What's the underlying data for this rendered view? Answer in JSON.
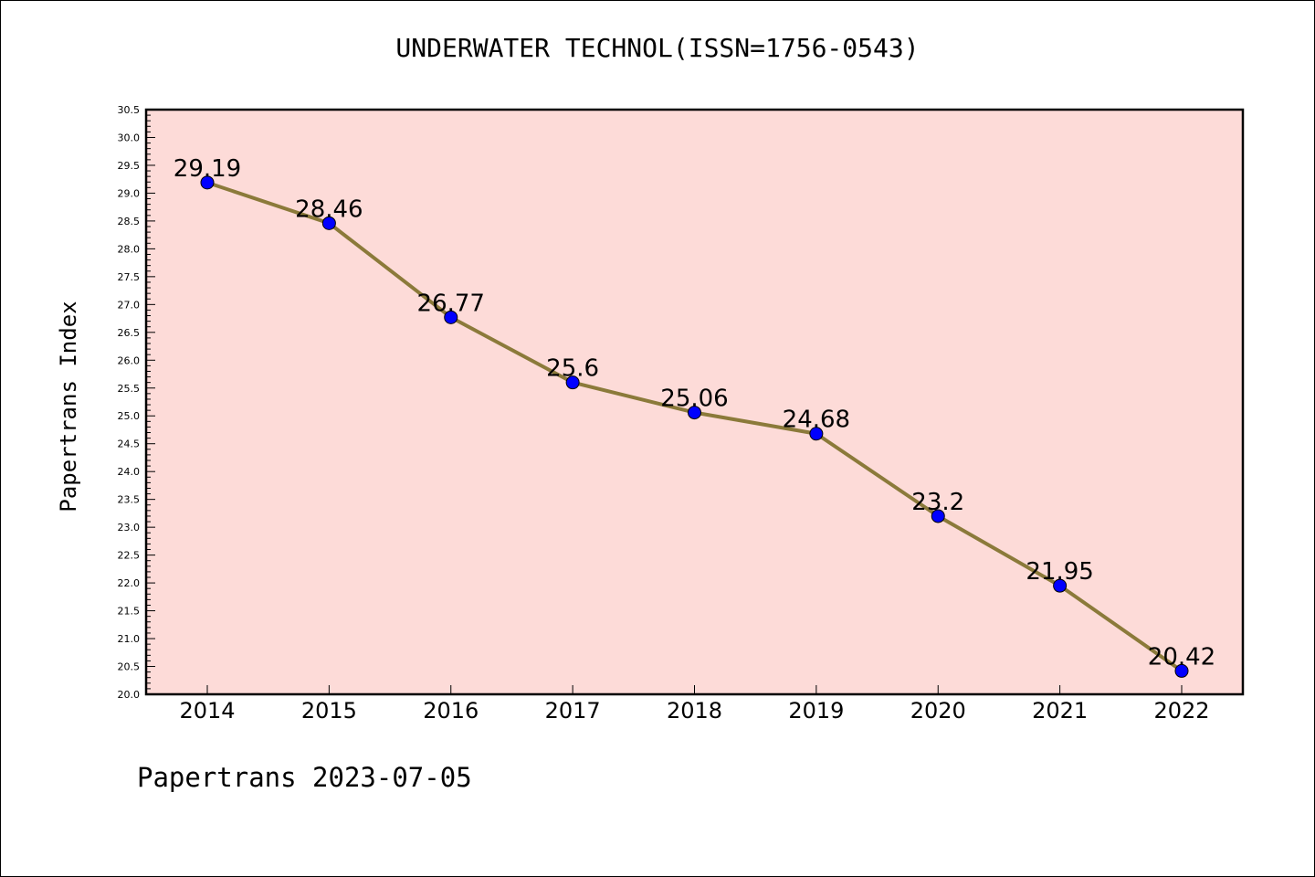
{
  "chart_data": {
    "type": "line",
    "title": "UNDERWATER TECHNOL(ISSN=1756-0543)",
    "xlabel": "",
    "ylabel": "Papertrans Index",
    "categories": [
      "2014",
      "2015",
      "2016",
      "2017",
      "2018",
      "2019",
      "2020",
      "2021",
      "2022"
    ],
    "series": [
      {
        "values": [
          29.19,
          28.46,
          26.77,
          25.6,
          25.06,
          24.68,
          23.2,
          21.95,
          20.42
        ]
      }
    ],
    "data_labels": [
      "29.19",
      "28.46",
      "26.77",
      "25.6",
      "25.06",
      "24.68",
      "23.2",
      "21.95",
      "20.42"
    ],
    "ylim": [
      20.0,
      30.5
    ],
    "yticks": [
      "20.0",
      "20.5",
      "21.0",
      "21.5",
      "22.0",
      "22.5",
      "23.0",
      "23.5",
      "24.0",
      "24.5",
      "25.0",
      "25.5",
      "26.0",
      "26.5",
      "27.0",
      "27.5",
      "28.0",
      "28.5",
      "29.0",
      "29.5",
      "30.0",
      "30.5"
    ],
    "grid": false,
    "colors": {
      "plot_background": "#fddbd8",
      "line": "#8b7a3a",
      "marker": "#0000ff"
    }
  },
  "footer": "Papertrans 2023-07-05"
}
